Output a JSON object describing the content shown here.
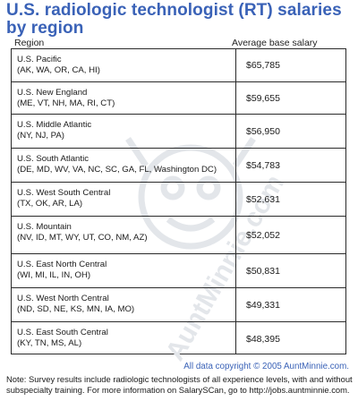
{
  "chart_data": {
    "type": "table",
    "title": "U.S. radiologic technologist (RT) salaries by region",
    "columns": [
      "Region",
      "Average base salary"
    ],
    "rows": [
      {
        "region": "U.S. Pacific",
        "states": "(AK, WA, OR, CA, HI)",
        "salary_label": "$65,785",
        "salary": 65785
      },
      {
        "region": "U.S. New England",
        "states": "(ME, VT, NH, MA, RI, CT)",
        "salary_label": "$59,655",
        "salary": 59655
      },
      {
        "region": "U.S. Middle Atlantic",
        "states": "(NY, NJ, PA)",
        "salary_label": "$56,950",
        "salary": 56950
      },
      {
        "region": "U.S. South Atlantic",
        "states": "(DE, MD, WV, VA, NC, SC, GA, FL, Washington DC)",
        "salary_label": "$54,783",
        "salary": 54783
      },
      {
        "region": "U.S. West South Central",
        "states": "(TX, OK, AR, LA)",
        "salary_label": "$52,631",
        "salary": 52631
      },
      {
        "region": "U.S. Mountain",
        "states": "(NV, ID, MT, WY, UT, CO, NM, AZ)",
        "salary_label": "$52,052",
        "salary": 52052
      },
      {
        "region": "U.S. East North Central",
        "states": "(WI, MI, IL, IN, OH)",
        "salary_label": "$50,831",
        "salary": 50831
      },
      {
        "region": "U.S. West North Central",
        "states": "(ND, SD, NE, KS, MN, IA, MO)",
        "salary_label": "$49,331",
        "salary": 49331
      },
      {
        "region": "U.S. East South Central",
        "states": "(KY, TN, MS, AL)",
        "salary_label": "$48,395",
        "salary": 48395
      }
    ]
  },
  "watermark_text": "AuntMinnie.com",
  "copyright": "All data copyright © 2005 AuntMinnie.com.",
  "note": "Note: Survey results include radiologic technologists of all experience levels, with and without subspecialty training. For more information on SalarySCan, go to http://jobs.auntminnie.com.",
  "colors": {
    "title": "#3a62b7",
    "watermark": "#e3e6ea",
    "border": "#2a2a2a"
  }
}
